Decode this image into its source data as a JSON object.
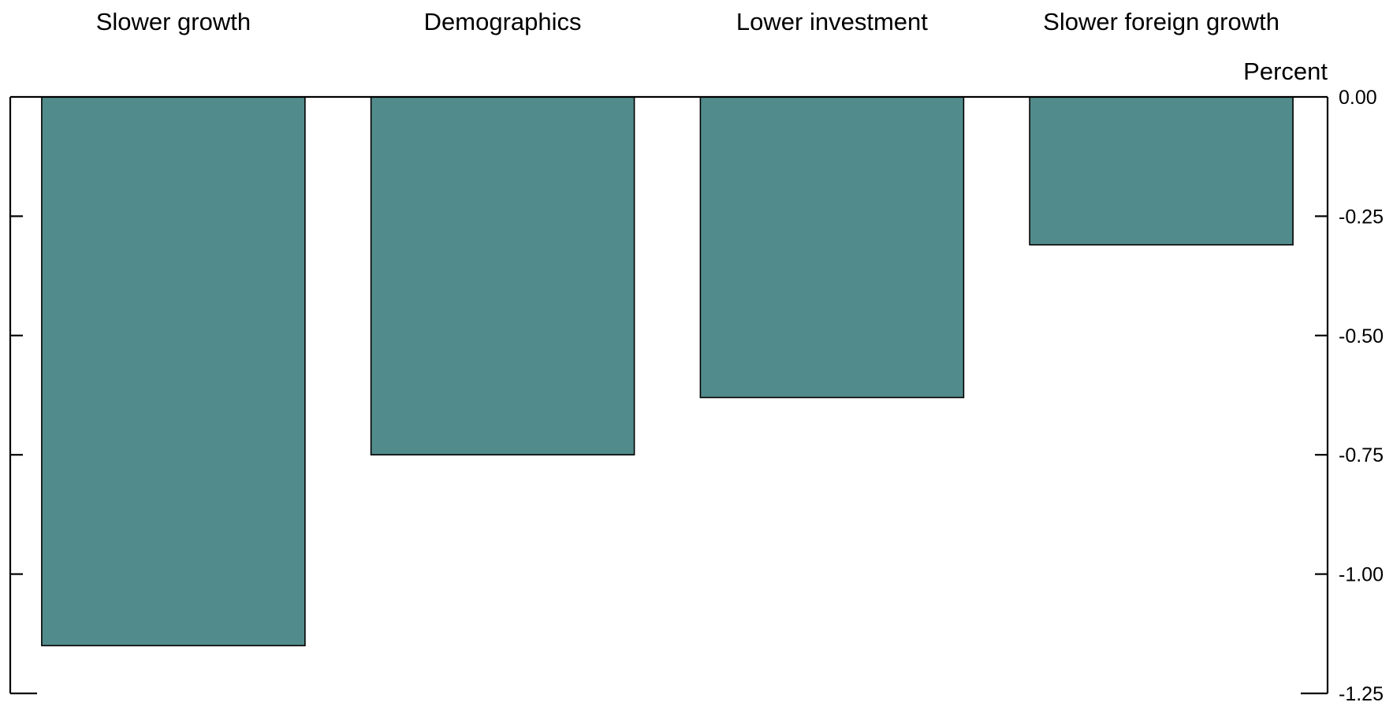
{
  "chart_data": {
    "type": "bar",
    "categories": [
      "Slower growth",
      "Demographics",
      "Lower investment",
      "Slower foreign growth"
    ],
    "values": [
      -1.15,
      -0.75,
      -0.63,
      -0.31
    ],
    "ylabel": "Percent",
    "ylim": [
      -1.25,
      0
    ],
    "yticks": [
      0,
      -0.25,
      -0.5,
      -0.75,
      -1,
      -1.25
    ],
    "ytick_labels": [
      "0.00",
      "-0.25",
      "-0.50",
      "-0.75",
      "-1.00",
      "-1.25"
    ],
    "bar_color": "#528b8b",
    "grid": false,
    "legend": "none",
    "axis_position": "right"
  }
}
